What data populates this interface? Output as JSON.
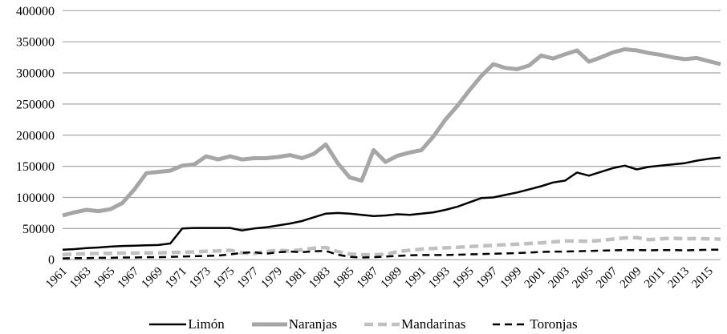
{
  "chart_data": {
    "type": "line",
    "title": "",
    "xlabel": "",
    "ylabel": "",
    "ylim": [
      0,
      400000
    ],
    "y_ticks": [
      0,
      50000,
      100000,
      150000,
      200000,
      250000,
      300000,
      350000,
      400000
    ],
    "grid": "horizontal",
    "grid_color": "#a6a6a6",
    "legend_position": "bottom",
    "x": [
      1961,
      1962,
      1963,
      1964,
      1965,
      1966,
      1967,
      1968,
      1969,
      1970,
      1971,
      1972,
      1973,
      1974,
      1975,
      1976,
      1977,
      1978,
      1979,
      1980,
      1981,
      1982,
      1983,
      1984,
      1985,
      1986,
      1987,
      1988,
      1989,
      1990,
      1991,
      1992,
      1993,
      1994,
      1995,
      1996,
      1997,
      1998,
      1999,
      2000,
      2001,
      2002,
      2003,
      2004,
      2005,
      2006,
      2007,
      2008,
      2009,
      2010,
      2011,
      2012,
      2013,
      2014,
      2015,
      2016
    ],
    "x_tick_labels": [
      "1961",
      "1963",
      "1965",
      "1967",
      "1969",
      "1971",
      "1973",
      "1975",
      "1977",
      "1979",
      "1981",
      "1983",
      "1985",
      "1987",
      "1989",
      "1991",
      "1993",
      "1995",
      "1997",
      "1999",
      "2001",
      "2003",
      "2005",
      "2007",
      "2009",
      "2011",
      "2013",
      "2015"
    ],
    "series": [
      {
        "name": "Limón",
        "color": "#000000",
        "width": 2.5,
        "dash": "none",
        "values": [
          16000,
          17000,
          18500,
          19500,
          21000,
          22000,
          22500,
          23000,
          23500,
          26000,
          50000,
          51000,
          51000,
          51000,
          51000,
          47000,
          50000,
          52000,
          55000,
          58000,
          62000,
          68000,
          74000,
          75000,
          74000,
          72000,
          70000,
          71000,
          73000,
          72000,
          74000,
          76000,
          80000,
          85000,
          92000,
          99000,
          100000,
          104000,
          108000,
          113000,
          118000,
          124000,
          127000,
          140000,
          135000,
          141000,
          147000,
          151000,
          145000,
          149000,
          151000,
          153000,
          155000,
          159000,
          162000,
          164000
        ]
      },
      {
        "name": "Naranjas",
        "color": "#a6a6a6",
        "width": 5,
        "dash": "none",
        "values": [
          71000,
          76000,
          80000,
          78000,
          81000,
          91000,
          113000,
          139000,
          141000,
          143000,
          151000,
          153000,
          166000,
          161000,
          166000,
          161000,
          163000,
          163000,
          165000,
          168000,
          163000,
          170000,
          185000,
          155000,
          132000,
          127000,
          176000,
          157000,
          167000,
          172000,
          176000,
          198000,
          225000,
          247000,
          272000,
          295000,
          314000,
          308000,
          306000,
          312000,
          328000,
          323000,
          330000,
          336000,
          318000,
          325000,
          333000,
          338000,
          336000,
          332000,
          329000,
          325000,
          322000,
          324000,
          319000,
          314000
        ]
      },
      {
        "name": "Mandarinas",
        "color": "#c0c0c0",
        "width": 4.5,
        "dash": "11 6",
        "values": [
          8000,
          9000,
          9500,
          10000,
          10000,
          10500,
          10500,
          11000,
          11000,
          11500,
          12000,
          12500,
          13500,
          14000,
          15000,
          11000,
          10000,
          13000,
          15000,
          14000,
          16000,
          18500,
          19500,
          13000,
          9000,
          8000,
          8000,
          8500,
          13000,
          15000,
          17000,
          18000,
          19000,
          20000,
          21000,
          22000,
          23000,
          24000,
          25000,
          26000,
          27000,
          28500,
          30000,
          30000,
          29500,
          31000,
          33000,
          35000,
          35500,
          32000,
          33500,
          34500,
          33500,
          34000,
          33500,
          33000
        ]
      },
      {
        "name": "Toronjas",
        "color": "#000000",
        "width": 2.5,
        "dash": "9 6",
        "values": [
          2000,
          2500,
          2500,
          3000,
          3000,
          3500,
          3500,
          4000,
          4000,
          4500,
          5000,
          5500,
          6000,
          6500,
          8500,
          11000,
          12000,
          9500,
          12000,
          13000,
          12000,
          13500,
          14000,
          8000,
          4500,
          3500,
          4000,
          5000,
          6000,
          7000,
          7500,
          7500,
          7500,
          8000,
          8500,
          9000,
          9500,
          10000,
          10500,
          11500,
          12500,
          13000,
          13000,
          13500,
          14000,
          14500,
          15000,
          15500,
          15500,
          15000,
          15500,
          15500,
          15000,
          15500,
          16000,
          16000
        ]
      }
    ]
  }
}
